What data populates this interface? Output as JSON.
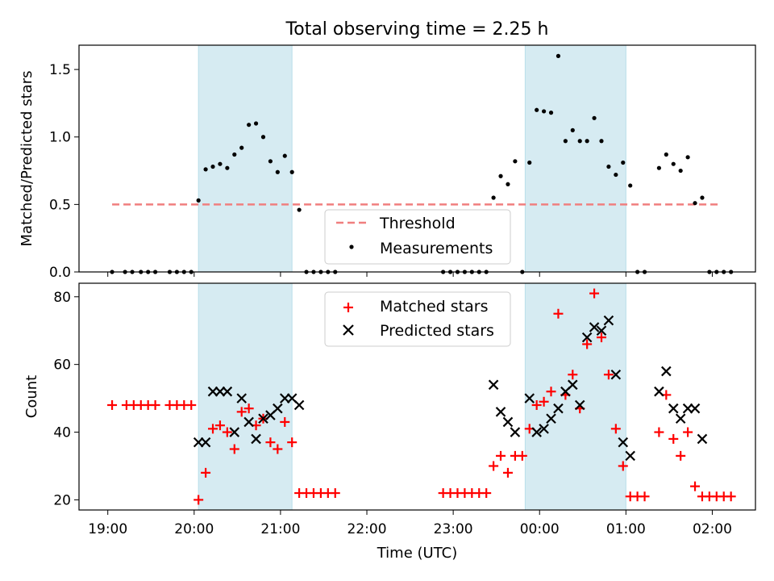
{
  "chart_data": [
    {
      "type": "scatter",
      "title": "Total observing time = 2.25 h",
      "xlabel": "",
      "ylabel": "Matched/Predicted stars",
      "xlim": [
        "18:40",
        "02:30"
      ],
      "ylim": [
        0,
        1.68
      ],
      "yticks": [
        "0.0",
        "0.5",
        "1.0",
        "1.5"
      ],
      "threshold": 0.5,
      "shaded_intervals": [
        [
          "20:03",
          "21:08"
        ],
        [
          "23:50",
          "01:00"
        ]
      ],
      "legend": {
        "position": "lower-center",
        "entries": [
          "Threshold",
          "Measurements"
        ]
      },
      "series": [
        {
          "name": "Measurements",
          "points": [
            [
              "19:03",
              0
            ],
            [
              "19:12",
              0
            ],
            [
              "19:17",
              0
            ],
            [
              "19:23",
              0
            ],
            [
              "19:28",
              0
            ],
            [
              "19:33",
              0
            ],
            [
              "19:43",
              0
            ],
            [
              "19:48",
              0
            ],
            [
              "19:53",
              0
            ],
            [
              "19:58",
              0
            ],
            [
              "20:03",
              0.53
            ],
            [
              "20:08",
              0.76
            ],
            [
              "20:13",
              0.78
            ],
            [
              "20:18",
              0.8
            ],
            [
              "20:23",
              0.77
            ],
            [
              "20:28",
              0.87
            ],
            [
              "20:33",
              0.92
            ],
            [
              "20:38",
              1.09
            ],
            [
              "20:43",
              1.1
            ],
            [
              "20:48",
              1.0
            ],
            [
              "20:53",
              0.82
            ],
            [
              "20:58",
              0.74
            ],
            [
              "21:03",
              0.86
            ],
            [
              "21:08",
              0.74
            ],
            [
              "21:13",
              0.46
            ],
            [
              "21:18",
              0
            ],
            [
              "21:23",
              0
            ],
            [
              "21:28",
              0
            ],
            [
              "21:33",
              0
            ],
            [
              "21:38",
              0
            ],
            [
              "22:53",
              0
            ],
            [
              "22:58",
              0
            ],
            [
              "23:03",
              0
            ],
            [
              "23:08",
              0
            ],
            [
              "23:13",
              0
            ],
            [
              "23:18",
              0
            ],
            [
              "23:23",
              0
            ],
            [
              "23:28",
              0.55
            ],
            [
              "23:33",
              0.71
            ],
            [
              "23:38",
              0.65
            ],
            [
              "23:43",
              0.82
            ],
            [
              "23:48",
              0
            ],
            [
              "23:53",
              0.81
            ],
            [
              "23:58",
              1.2
            ],
            [
              "00:03",
              1.19
            ],
            [
              "00:08",
              1.18
            ],
            [
              "00:13",
              1.6
            ],
            [
              "00:18",
              0.97
            ],
            [
              "00:23",
              1.05
            ],
            [
              "00:28",
              0.97
            ],
            [
              "00:33",
              0.97
            ],
            [
              "00:38",
              1.14
            ],
            [
              "00:43",
              0.97
            ],
            [
              "00:48",
              0.78
            ],
            [
              "00:53",
              0.72
            ],
            [
              "00:58",
              0.81
            ],
            [
              "01:03",
              0.64
            ],
            [
              "01:08",
              0
            ],
            [
              "01:13",
              0
            ],
            [
              "01:23",
              0.77
            ],
            [
              "01:28",
              0.87
            ],
            [
              "01:33",
              0.8
            ],
            [
              "01:38",
              0.75
            ],
            [
              "01:43",
              0.85
            ],
            [
              "01:48",
              0.51
            ],
            [
              "01:53",
              0.55
            ],
            [
              "01:58",
              0
            ],
            [
              "02:03",
              0
            ],
            [
              "02:08",
              0
            ],
            [
              "02:13",
              0
            ]
          ]
        }
      ]
    },
    {
      "type": "scatter",
      "title": "",
      "xlabel": "Time (UTC)",
      "ylabel": "Count",
      "xlim": [
        "18:40",
        "02:30"
      ],
      "ylim": [
        17,
        84
      ],
      "xticks": [
        "19:00",
        "20:00",
        "21:00",
        "22:00",
        "23:00",
        "00:00",
        "01:00",
        "02:00"
      ],
      "yticks": [
        "20",
        "40",
        "60",
        "80"
      ],
      "shaded_intervals": [
        [
          "20:03",
          "21:08"
        ],
        [
          "23:50",
          "01:00"
        ]
      ],
      "legend": {
        "position": "top-center",
        "entries": [
          "Matched stars",
          "Predicted stars"
        ]
      },
      "series": [
        {
          "name": "Matched stars",
          "color": "#ff0000",
          "points": [
            [
              "19:03",
              48
            ],
            [
              "19:13",
              48
            ],
            [
              "19:18",
              48
            ],
            [
              "19:23",
              48
            ],
            [
              "19:28",
              48
            ],
            [
              "19:33",
              48
            ],
            [
              "19:43",
              48
            ],
            [
              "19:48",
              48
            ],
            [
              "19:53",
              48
            ],
            [
              "19:58",
              48
            ],
            [
              "20:03",
              20
            ],
            [
              "20:08",
              28
            ],
            [
              "20:13",
              41
            ],
            [
              "20:18",
              42
            ],
            [
              "20:23",
              40
            ],
            [
              "20:28",
              35
            ],
            [
              "20:33",
              46
            ],
            [
              "20:38",
              47
            ],
            [
              "20:43",
              42
            ],
            [
              "20:48",
              44
            ],
            [
              "20:53",
              37
            ],
            [
              "20:58",
              35
            ],
            [
              "21:03",
              43
            ],
            [
              "21:08",
              37
            ],
            [
              "21:13",
              22
            ],
            [
              "21:18",
              22
            ],
            [
              "21:23",
              22
            ],
            [
              "21:28",
              22
            ],
            [
              "21:33",
              22
            ],
            [
              "21:38",
              22
            ],
            [
              "22:53",
              22
            ],
            [
              "22:58",
              22
            ],
            [
              "23:03",
              22
            ],
            [
              "23:08",
              22
            ],
            [
              "23:13",
              22
            ],
            [
              "23:18",
              22
            ],
            [
              "23:23",
              22
            ],
            [
              "23:28",
              30
            ],
            [
              "23:33",
              33
            ],
            [
              "23:38",
              28
            ],
            [
              "23:43",
              33
            ],
            [
              "23:48",
              33
            ],
            [
              "23:53",
              41
            ],
            [
              "23:58",
              48
            ],
            [
              "00:03",
              49
            ],
            [
              "00:08",
              52
            ],
            [
              "00:13",
              75
            ],
            [
              "00:18",
              51
            ],
            [
              "00:23",
              57
            ],
            [
              "00:28",
              47
            ],
            [
              "00:33",
              66
            ],
            [
              "00:38",
              81
            ],
            [
              "00:43",
              68
            ],
            [
              "00:48",
              57
            ],
            [
              "00:53",
              41
            ],
            [
              "00:58",
              30
            ],
            [
              "01:03",
              21
            ],
            [
              "01:08",
              21
            ],
            [
              "01:13",
              21
            ],
            [
              "01:23",
              40
            ],
            [
              "01:28",
              51
            ],
            [
              "01:33",
              38
            ],
            [
              "01:38",
              33
            ],
            [
              "01:43",
              40
            ],
            [
              "01:48",
              24
            ],
            [
              "01:53",
              21
            ],
            [
              "01:58",
              21
            ],
            [
              "02:03",
              21
            ],
            [
              "02:08",
              21
            ],
            [
              "02:13",
              21
            ]
          ]
        },
        {
          "name": "Predicted stars",
          "color": "#000000",
          "points": [
            [
              "20:03",
              37
            ],
            [
              "20:08",
              37
            ],
            [
              "20:13",
              52
            ],
            [
              "20:18",
              52
            ],
            [
              "20:23",
              52
            ],
            [
              "20:28",
              40
            ],
            [
              "20:33",
              50
            ],
            [
              "20:38",
              43
            ],
            [
              "20:43",
              38
            ],
            [
              "20:48",
              44
            ],
            [
              "20:53",
              45
            ],
            [
              "20:58",
              47
            ],
            [
              "21:03",
              50
            ],
            [
              "21:08",
              50
            ],
            [
              "21:13",
              48
            ],
            [
              "23:28",
              54
            ],
            [
              "23:33",
              46
            ],
            [
              "23:38",
              43
            ],
            [
              "23:43",
              40
            ],
            [
              "23:53",
              50
            ],
            [
              "23:58",
              40
            ],
            [
              "00:03",
              41
            ],
            [
              "00:08",
              44
            ],
            [
              "00:13",
              47
            ],
            [
              "00:18",
              52
            ],
            [
              "00:23",
              54
            ],
            [
              "00:28",
              48
            ],
            [
              "00:33",
              68
            ],
            [
              "00:38",
              71
            ],
            [
              "00:43",
              70
            ],
            [
              "00:48",
              73
            ],
            [
              "00:53",
              57
            ],
            [
              "00:58",
              37
            ],
            [
              "01:03",
              33
            ],
            [
              "01:23",
              52
            ],
            [
              "01:28",
              58
            ],
            [
              "01:33",
              47
            ],
            [
              "01:38",
              44
            ],
            [
              "01:43",
              47
            ],
            [
              "01:48",
              47
            ],
            [
              "01:53",
              38
            ]
          ]
        }
      ]
    }
  ]
}
